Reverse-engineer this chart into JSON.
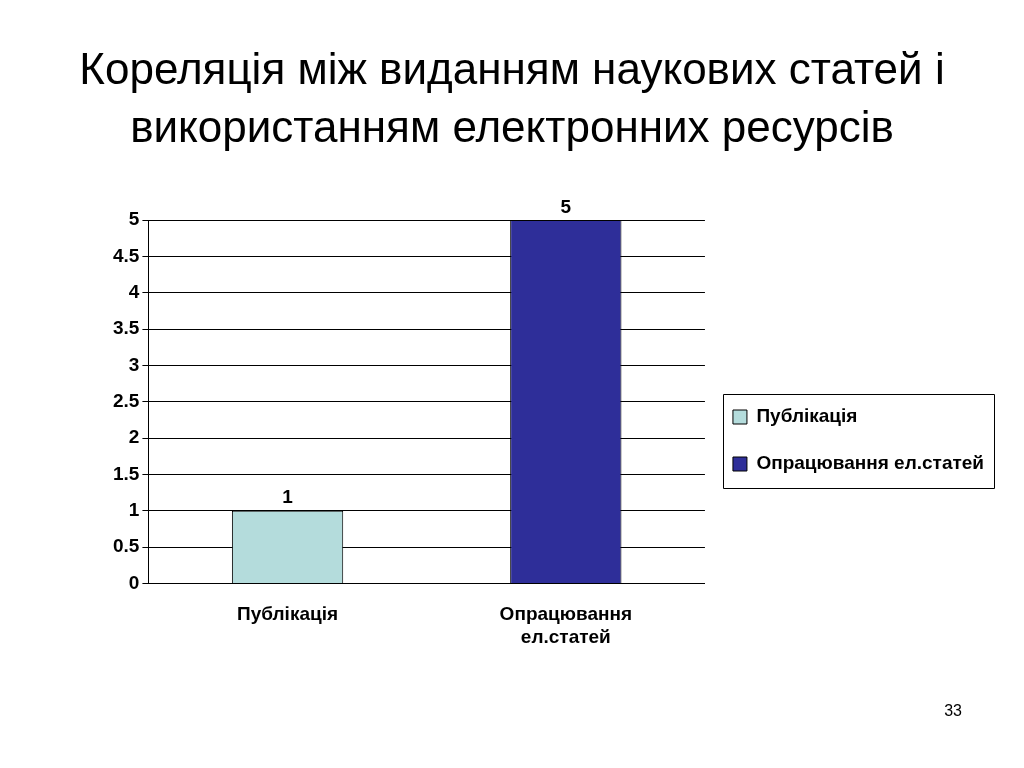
{
  "chart_data": {
    "type": "bar",
    "title": "Кореляція між виданням наукових статей і використанням електронних ресурсів",
    "categories": [
      "Публікація",
      "Опрацювання ел.статей"
    ],
    "series": [
      {
        "name": "Публікація",
        "color": "#b4dcdc",
        "values": [
          1,
          null
        ]
      },
      {
        "name": "Опрацювання ел.статей",
        "color": "#2e2e99",
        "values": [
          null,
          5
        ]
      }
    ],
    "ylim": [
      0,
      5
    ],
    "yticks": [
      0,
      0.5,
      1,
      1.5,
      2,
      2.5,
      3,
      3.5,
      4,
      4.5,
      5
    ],
    "grid": "y",
    "legend": "right",
    "data_labels": true,
    "annotations": [
      "33"
    ]
  }
}
